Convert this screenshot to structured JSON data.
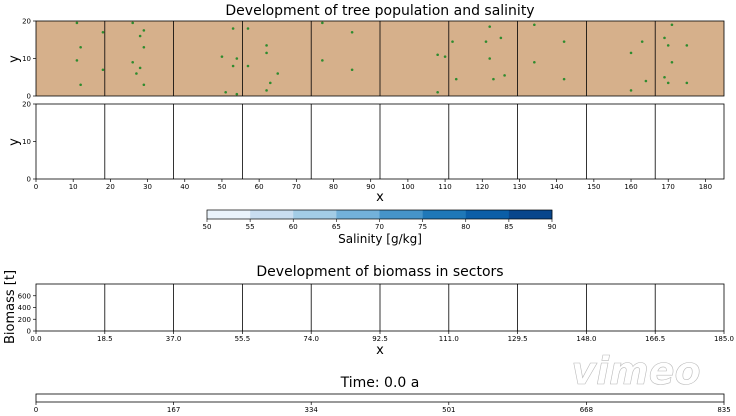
{
  "tree_panel": {
    "title": "Development of tree population and salinity",
    "ylabel": "y",
    "background_color": "#d6b08b",
    "tree_color": "#2e8b2e",
    "y_ticks": [
      "0",
      "10",
      "20"
    ]
  },
  "salinity_panel": {
    "ylabel": "y",
    "xlabel": "x",
    "x_ticks": [
      "0",
      "10",
      "20",
      "30",
      "40",
      "50",
      "60",
      "70",
      "80",
      "90",
      "100",
      "110",
      "120",
      "130",
      "140",
      "150",
      "160",
      "170",
      "180"
    ],
    "y_ticks": [
      "0",
      "10",
      "20"
    ]
  },
  "colorbar": {
    "label": "Salinity [g/kg]",
    "ticks": [
      "50",
      "55",
      "60",
      "65",
      "70",
      "75",
      "80",
      "85",
      "90"
    ],
    "colors": [
      "#eaf3fb",
      "#c9ddf0",
      "#a3cce6",
      "#73b1da",
      "#4694c9",
      "#1f78b8",
      "#0b5ea7",
      "#08468c"
    ]
  },
  "biomass_panel": {
    "title": "Development of biomass in sectors",
    "ylabel": "Biomass [t]",
    "xlabel": "x",
    "x_ticks": [
      "0.0",
      "18.5",
      "37.0",
      "55.5",
      "74.0",
      "92.5",
      "111.0",
      "129.5",
      "148.0",
      "166.5",
      "185.0"
    ],
    "y_ticks": [
      "0",
      "200",
      "400",
      "600"
    ]
  },
  "time_panel": {
    "title": "Time: 0.0 a",
    "ticks": [
      "0",
      "167",
      "334",
      "501",
      "668",
      "835"
    ]
  },
  "watermark": {
    "text": "vimeo"
  },
  "chart_data": [
    {
      "type": "scatter",
      "title": "Development of tree population and salinity",
      "xlabel": "",
      "ylabel": "y",
      "xlim": [
        0,
        185
      ],
      "ylim": [
        0,
        20
      ],
      "sector_boundaries": [
        18.5,
        37.0,
        55.5,
        74.0,
        92.5,
        111.0,
        129.5,
        148.0,
        166.5
      ],
      "series": [
        {
          "points": [
            [
              11,
              19.5
            ],
            [
              12,
              13
            ],
            [
              11,
              9.5
            ],
            [
              12,
              3
            ],
            [
              18,
              17
            ],
            [
              18,
              7
            ],
            [
              26,
              19.5
            ],
            [
              29,
              17.5
            ],
            [
              28,
              16
            ],
            [
              29,
              13
            ],
            [
              26,
              9
            ],
            [
              28,
              7.5
            ],
            [
              27,
              6
            ],
            [
              29,
              3
            ],
            [
              53,
              18
            ],
            [
              50,
              10.5
            ],
            [
              54,
              10
            ],
            [
              53,
              8
            ],
            [
              51,
              1
            ],
            [
              54,
              0.5
            ],
            [
              57,
              18
            ],
            [
              62,
              13.5
            ],
            [
              62,
              11.5
            ],
            [
              57,
              8
            ],
            [
              65,
              6
            ],
            [
              63,
              3.5
            ],
            [
              62,
              1.5
            ],
            [
              77,
              19.5
            ],
            [
              85,
              17
            ],
            [
              77,
              9.5
            ],
            [
              85,
              7
            ],
            [
              108,
              11
            ],
            [
              110,
              10.5
            ],
            [
              112,
              14.5
            ],
            [
              108,
              1
            ],
            [
              122,
              18.5
            ],
            [
              125,
              15.5
            ],
            [
              121,
              14.5
            ],
            [
              122,
              10
            ],
            [
              126,
              5.5
            ],
            [
              113,
              4.5
            ],
            [
              123,
              4.5
            ],
            [
              134,
              19
            ],
            [
              134,
              9
            ],
            [
              142,
              14.5
            ],
            [
              142,
              4.5
            ],
            [
              163,
              14.5
            ],
            [
              160,
              11.5
            ],
            [
              164,
              4
            ],
            [
              160,
              1.5
            ],
            [
              171,
              19
            ],
            [
              169,
              15.5
            ],
            [
              170,
              13.5
            ],
            [
              175,
              13.5
            ],
            [
              171,
              9
            ],
            [
              169,
              5
            ],
            [
              170,
              3.5
            ],
            [
              175,
              3.5
            ]
          ]
        }
      ]
    },
    {
      "type": "heatmap",
      "title": "",
      "xlabel": "x",
      "ylabel": "y",
      "xlim": [
        0,
        185
      ],
      "ylim": [
        0,
        20
      ],
      "colorbar_label": "Salinity [g/kg]",
      "colorbar_range": [
        50,
        90
      ],
      "values": []
    },
    {
      "type": "bar",
      "title": "Development of biomass in sectors",
      "xlabel": "x",
      "ylabel": "Biomass [t]",
      "categories": [
        "0.0",
        "18.5",
        "37.0",
        "55.5",
        "74.0",
        "92.5",
        "111.0",
        "129.5",
        "148.0",
        "166.5"
      ],
      "values": [
        0,
        0,
        0,
        0,
        0,
        0,
        0,
        0,
        0,
        0
      ],
      "ylim": [
        0,
        800
      ]
    },
    {
      "type": "line",
      "title": "Time: 0.0 a",
      "xlim": [
        0,
        835
      ],
      "values": [
        0
      ]
    }
  ]
}
